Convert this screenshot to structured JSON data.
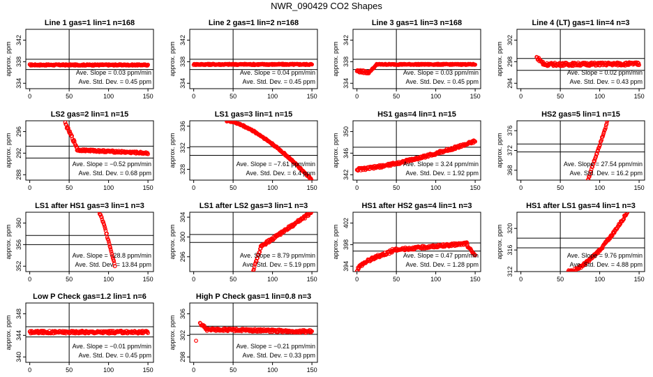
{
  "page": {
    "title": "NWR_090429  CO2 Shapes"
  },
  "chart_data": [
    {
      "type": "scatter",
      "title": "Line 1 gas=1 lin=1 n=168",
      "ylabel": "approx. ppm",
      "xticks": [
        "0",
        "50",
        "100",
        "150"
      ],
      "xlim": [
        -5,
        157
      ],
      "yticks": [
        "334",
        "338",
        "342"
      ],
      "ylim": [
        333,
        344
      ],
      "hlines": [
        338.45,
        336.55
      ],
      "vline": 50,
      "stats": {
        "slope": "Ave. Slope = 0.03 ppm/min",
        "std": "Ave. Std. Dev. = 0.45 ppm"
      },
      "series": [
        {
          "x0": 0,
          "x1": 150,
          "y0": 337.4,
          "y1": 337.4,
          "noise": 0.12
        }
      ]
    },
    {
      "type": "scatter",
      "title": "Line 2 gas=1 lin=2 n=168",
      "ylabel": "approx. ppm",
      "xticks": [
        "0",
        "50",
        "100",
        "150"
      ],
      "xlim": [
        -5,
        157
      ],
      "yticks": [
        "334",
        "338",
        "342"
      ],
      "ylim": [
        333,
        344
      ],
      "hlines": [
        338.45,
        336.55
      ],
      "vline": 50,
      "stats": {
        "slope": "Ave. Slope = 0.04 ppm/min",
        "std": "Ave. Std. Dev. = 0.45 ppm"
      },
      "series": [
        {
          "x0": 0,
          "x1": 150,
          "y0": 337.5,
          "y1": 337.5,
          "noise": 0.12
        }
      ]
    },
    {
      "type": "scatter",
      "title": "Line 3 gas=1 lin=3 n=168",
      "ylabel": "approx. ppm",
      "xticks": [
        "0",
        "50",
        "100",
        "150"
      ],
      "xlim": [
        -5,
        157
      ],
      "yticks": [
        "334",
        "338",
        "342"
      ],
      "ylim": [
        333,
        344
      ],
      "hlines": [
        338.45,
        336.55
      ],
      "vline": 50,
      "stats": {
        "slope": "Ave. Slope = 0.03 ppm/min",
        "std": "Ave. Std. Dev. = 0.45 ppm"
      },
      "series": [
        {
          "x0": 0,
          "x1": 15,
          "y0": 336.3,
          "y1": 336.0,
          "noise": 0.25
        },
        {
          "x0": 15,
          "x1": 25,
          "y0": 336.0,
          "y1": 337.4,
          "noise": 0.1
        },
        {
          "x0": 25,
          "x1": 150,
          "y0": 337.5,
          "y1": 337.5,
          "noise": 0.1
        }
      ]
    },
    {
      "type": "scatter",
      "title": "Line 4 (LT) gas=1 lin=4 n=3",
      "ylabel": "approx. ppm",
      "xticks": [
        "0",
        "50",
        "100",
        "150"
      ],
      "xlim": [
        -5,
        157
      ],
      "yticks": [
        "294",
        "298",
        "302"
      ],
      "ylim": [
        293,
        304
      ],
      "hlines": [
        298.6,
        296.4
      ],
      "vline": 50,
      "stats": {
        "slope": "Ave. Slope = 0.02 ppm/min",
        "std": "Ave. Std. Dev. = 0.43 ppm"
      },
      "series": [
        {
          "x0": 20,
          "x1": 28,
          "y0": 298.8,
          "y1": 297.8,
          "noise": 0.3
        },
        {
          "x0": 28,
          "x1": 150,
          "y0": 297.5,
          "y1": 297.6,
          "noise": 0.3
        }
      ]
    },
    {
      "type": "scatter",
      "title": "LS2 gas=2 lin=1 n=15",
      "ylabel": "approx. ppm",
      "xticks": [
        "0",
        "50",
        "100",
        "150"
      ],
      "xlim": [
        -5,
        157
      ],
      "yticks": [
        "288",
        "292",
        "296"
      ],
      "ylim": [
        287,
        298
      ],
      "hlines": [
        293.3,
        291.1
      ],
      "vline": 50,
      "stats": {
        "slope": "Ave. Slope = −0.52 ppm/min",
        "std": "Ave. Std. Dev. = 0.68 ppm"
      },
      "series": [
        {
          "x0": 45,
          "x1": 60,
          "y0": 297.5,
          "y1": 293.0,
          "noise": 0.3
        },
        {
          "x0": 60,
          "x1": 150,
          "y0": 292.6,
          "y1": 292.0,
          "noise": 0.2
        }
      ]
    },
    {
      "type": "scatter",
      "title": "LS1 gas=3 lin=1 n=15",
      "ylabel": "approx. ppm",
      "xticks": [
        "0",
        "50",
        "100",
        "150"
      ],
      "xlim": [
        -5,
        157
      ],
      "yticks": [
        "328",
        "332",
        "336"
      ],
      "ylim": [
        326,
        337
      ],
      "hlines": [
        332.2,
        330.6
      ],
      "vline": 50,
      "stats": {
        "slope": "Ave. Slope = −7.61 ppm/min",
        "std": "Ave. Std. Dev. = 6.4 ppm"
      },
      "series": [
        {
          "x0": 42,
          "x1": 150,
          "y0": 337.0,
          "y1": 326.0,
          "curve": 1.5,
          "noise": 0.15
        }
      ]
    },
    {
      "type": "scatter",
      "title": "HS1 gas=4 lin=1 n=15",
      "ylabel": "approx. ppm",
      "xticks": [
        "0",
        "50",
        "100",
        "150"
      ],
      "xlim": [
        -5,
        157
      ],
      "yticks": [
        "342",
        "346",
        "350"
      ],
      "ylim": [
        341,
        352
      ],
      "hlines": [
        347.1,
        345.6
      ],
      "vline": 50,
      "stats": {
        "slope": "Ave. Slope = 3.24 ppm/min",
        "std": "Ave. Std. Dev. = 1.92 ppm"
      },
      "series": [
        {
          "x0": 0,
          "x1": 150,
          "y0": 343.0,
          "y1": 348.2,
          "curve": 1.4,
          "noise": 0.25
        }
      ]
    },
    {
      "type": "scatter",
      "title": "HS2 gas=5 lin=1 n=15",
      "ylabel": "approx. ppm",
      "xticks": [
        "0",
        "50",
        "100",
        "150"
      ],
      "xlim": [
        -5,
        157
      ],
      "yticks": [
        "368",
        "372",
        "376"
      ],
      "ylim": [
        366,
        378
      ],
      "hlines": [
        373.3,
        371.7
      ],
      "vline": 50,
      "stats": {
        "slope": "Ave. Slope = 27.54 ppm/min",
        "std": "Ave. Std. Dev. = 16.2 ppm"
      },
      "series": [
        {
          "x0": 85,
          "x1": 110,
          "y0": 366,
          "y1": 378,
          "noise": 0.25
        }
      ]
    },
    {
      "type": "scatter",
      "title": "LS1 after HS1 gas=3 lin=1 n=3",
      "ylabel": "approx. ppm",
      "xticks": [
        "0",
        "50",
        "100",
        "150"
      ],
      "xlim": [
        -5,
        157
      ],
      "yticks": [
        "352",
        "356",
        "360"
      ],
      "ylim": [
        351,
        362
      ],
      "hlines": [
        357.7,
        356.0
      ],
      "vline": 50,
      "stats": {
        "slope": "Ave. Slope = −28.8 ppm/min",
        "std": "Ave. Std. Dev. = 13.84 ppm"
      },
      "series": [
        {
          "x0": 88,
          "x1": 108,
          "y0": 362,
          "y1": 352.2,
          "curve": 1.2,
          "noise": 0.25
        }
      ]
    },
    {
      "type": "scatter",
      "title": "LS1 after LS2 gas=3 lin=1 n=3",
      "ylabel": "approx. ppm",
      "xticks": [
        "0",
        "50",
        "100",
        "150"
      ],
      "xlim": [
        -5,
        157
      ],
      "yticks": [
        "296",
        "300",
        "304"
      ],
      "ylim": [
        293,
        305
      ],
      "hlines": [
        300.5,
        298.9
      ],
      "vline": 50,
      "stats": {
        "slope": "Ave. Slope = 8.79 ppm/min",
        "std": "Ave. Std. Dev. = 5.19 ppm"
      },
      "series": [
        {
          "x0": 75,
          "x1": 85,
          "y0": 293,
          "y1": 297.8,
          "noise": 0.2
        },
        {
          "x0": 85,
          "x1": 150,
          "y0": 298,
          "y1": 305,
          "noise": 0.3
        }
      ]
    },
    {
      "type": "scatter",
      "title": "HS1 after HS2 gas=4 lin=1 n=3",
      "ylabel": "approx. ppm",
      "xticks": [
        "0",
        "50",
        "100",
        "150"
      ],
      "xlim": [
        -5,
        157
      ],
      "yticks": [
        "394",
        "398",
        "402"
      ],
      "ylim": [
        393,
        404
      ],
      "hlines": [
        398.3,
        396.8
      ],
      "vline": 50,
      "stats": {
        "slope": "Ave. Slope = 0.47 ppm/min",
        "std": "Ave. Std. Dev. = 1.28 ppm"
      },
      "series": [
        {
          "x0": 0,
          "x1": 45,
          "y0": 393.2,
          "y1": 396.8,
          "curve": 0.6,
          "noise": 0.3
        },
        {
          "x0": 45,
          "x1": 140,
          "y0": 397.0,
          "y1": 398.2,
          "noise": 0.25
        },
        {
          "x0": 140,
          "x1": 150,
          "y0": 397.8,
          "y1": 396.0,
          "noise": 0.2
        }
      ]
    },
    {
      "type": "scatter",
      "title": "HS1 after LS1 gas=4 lin=1 n=3",
      "ylabel": "approx. ppm",
      "xticks": [
        "0",
        "50",
        "100",
        "150"
      ],
      "xlim": [
        -5,
        157
      ],
      "yticks": [
        "312",
        "316",
        "320"
      ],
      "ylim": [
        312,
        323
      ],
      "hlines": [
        318.2,
        316.4
      ],
      "vline": 50,
      "stats": {
        "slope": "Ave. Slope = 9.76 ppm/min",
        "std": "Ave. Std. Dev. = 4.88 ppm"
      },
      "series": [
        {
          "x0": 60,
          "x1": 135,
          "y0": 312,
          "y1": 323,
          "curve": 1.6,
          "noise": 0.25
        }
      ]
    },
    {
      "type": "scatter",
      "title": "Low P Check gas=1.2 lin=1 n=6",
      "ylabel": "approx. ppm",
      "xticks": [
        "0",
        "50",
        "100",
        "150"
      ],
      "xlim": [
        -5,
        157
      ],
      "yticks": [
        "340",
        "344",
        "348"
      ],
      "ylim": [
        339,
        350
      ],
      "hlines": [
        345.6,
        343.7
      ],
      "vline": 50,
      "stats": {
        "slope": "Ave. Slope = −0.01 ppm/min",
        "std": "Ave. Std. Dev. = 0.45 ppm"
      },
      "series": [
        {
          "x0": 0,
          "x1": 150,
          "y0": 344.6,
          "y1": 344.6,
          "noise": 0.25
        }
      ]
    },
    {
      "type": "scatter",
      "title": "High P Check gas=1 lin=0.8 n=3",
      "ylabel": "approx. ppm",
      "xticks": [
        "0",
        "50",
        "100",
        "150"
      ],
      "xlim": [
        -5,
        157
      ],
      "yticks": [
        "298",
        "302",
        "306"
      ],
      "ylim": [
        297,
        308
      ],
      "hlines": [
        303.7,
        302.2
      ],
      "vline": 50,
      "stats": {
        "slope": "Ave. Slope = −0.21 ppm/min",
        "std": "Ave. Std. Dev. = 0.33 ppm"
      },
      "series": [
        {
          "x0": 3,
          "x1": 3,
          "y0": 301.0,
          "y1": 301.0,
          "noise": 0
        },
        {
          "x0": 8,
          "x1": 15,
          "y0": 304.2,
          "y1": 303.4,
          "noise": 0.2
        },
        {
          "x0": 15,
          "x1": 150,
          "y0": 303.1,
          "y1": 302.7,
          "noise": 0.25
        }
      ]
    }
  ]
}
